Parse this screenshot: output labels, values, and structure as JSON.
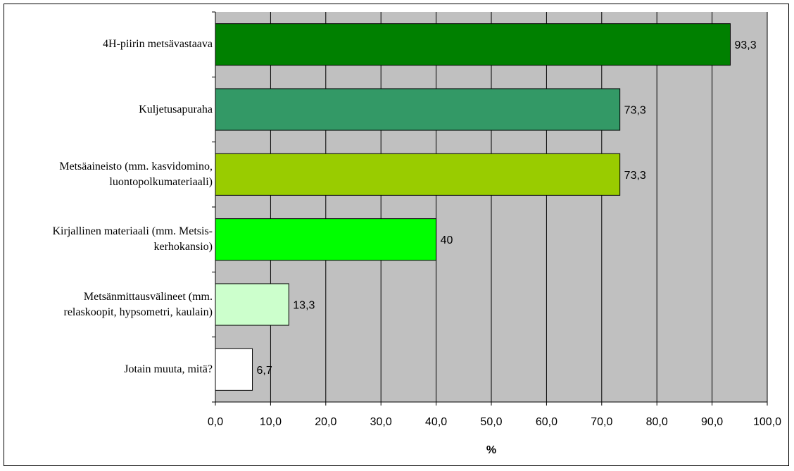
{
  "chart_data": {
    "type": "bar",
    "orientation": "horizontal",
    "categories": [
      [
        "4H-piirin metsävastaava"
      ],
      [
        "Kuljetusapuraha"
      ],
      [
        "Metsäaineisto (mm. kasvidomino,",
        "luontopolkumateriaali)"
      ],
      [
        "Kirjallinen materiaali (mm. Metsis-",
        "kerhokansio)"
      ],
      [
        "Metsänmittausvälineet (mm.",
        "relaskoopit, hypsometri, kaulain)"
      ],
      [
        "Jotain muuta, mitä?"
      ]
    ],
    "values": [
      93.3,
      73.3,
      73.3,
      40,
      13.3,
      6.7
    ],
    "value_labels": [
      "93,3",
      "73,3",
      "73,3",
      "40",
      "13,3",
      "6,7"
    ],
    "bar_colors": [
      "#008000",
      "#339966",
      "#99cc00",
      "#00ff00",
      "#ccffcc",
      "#ffffff"
    ],
    "xlabel": "%",
    "xlim": [
      0,
      100
    ],
    "xticks": [
      0,
      10,
      20,
      30,
      40,
      50,
      60,
      70,
      80,
      90,
      100
    ],
    "xtick_labels": [
      "0,0",
      "10,0",
      "20,0",
      "30,0",
      "40,0",
      "50,0",
      "60,0",
      "70,0",
      "80,0",
      "90,0",
      "100,0"
    ],
    "grid": true,
    "plot_background": "#c0c0c0",
    "legend": "none"
  }
}
